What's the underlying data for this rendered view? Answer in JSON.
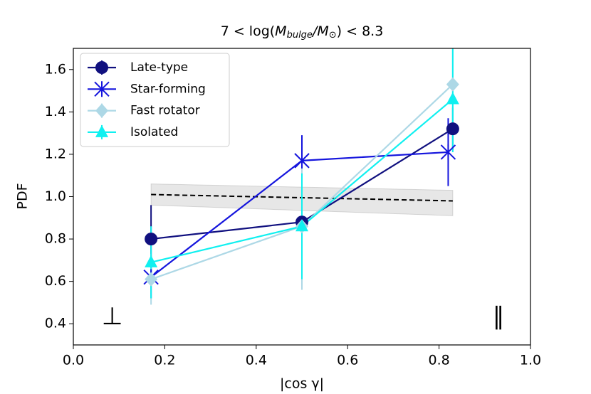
{
  "chart_data": {
    "type": "errorbar",
    "title": {
      "pre": "7 < log(",
      "m1": "M",
      "sub1": "bulge",
      "mid": "/",
      "m2": "M",
      "sub2": "⊙",
      "post": ") < 8.3"
    },
    "xlabel": "|cos γ|",
    "ylabel": "PDF",
    "xlim": [
      0,
      1
    ],
    "ylim": [
      0.3,
      1.7
    ],
    "xticks": [
      {
        "value": 0,
        "label": "0.0"
      },
      0.2,
      0.4,
      0.6,
      0.8,
      {
        "value": 1,
        "label": "1.0"
      }
    ],
    "yticks": [
      0.4,
      0.6,
      0.8,
      {
        "value": 1,
        "label": "1.0"
      },
      1.2,
      1.4,
      1.6
    ],
    "legend": "upper left",
    "series": [
      {
        "name": "Late-type",
        "color": "#10107f",
        "marker": "circle",
        "x": [
          0.17,
          0.5,
          0.83
        ],
        "values": [
          0.8,
          0.88,
          1.32
        ],
        "errors": [
          0.16,
          0.15,
          0.1
        ]
      },
      {
        "name": "Star-forming",
        "color": "#1515dd",
        "marker": "star",
        "x": [
          0.17,
          0.5,
          0.82
        ],
        "values": [
          0.62,
          1.17,
          1.21
        ],
        "errors": [
          0.1,
          0.12,
          0.16
        ]
      },
      {
        "name": "Fast rotator",
        "color": "#add8e6",
        "marker": "diamond",
        "x": [
          0.17,
          0.5,
          0.83
        ],
        "values": [
          0.61,
          0.86,
          1.53
        ],
        "errors": [
          0.12,
          0.3,
          0.2
        ]
      },
      {
        "name": "Isolated",
        "color": "#10f0f0",
        "marker": "triangle",
        "x": [
          0.17,
          0.5,
          0.83
        ],
        "values": [
          0.69,
          0.86,
          1.46
        ],
        "errors": [
          0.17,
          0.25,
          0.25
        ]
      }
    ],
    "reference": {
      "x": [
        0.17,
        0.83
      ],
      "values": [
        1.01,
        0.98
      ],
      "lower": [
        0.96,
        0.91
      ],
      "upper": [
        1.06,
        1.03
      ]
    },
    "annotations": [
      {
        "text": "⊥",
        "x": 0.085,
        "y": 0.43
      },
      {
        "text": "∥",
        "x": 0.93,
        "y": 0.43
      }
    ]
  }
}
